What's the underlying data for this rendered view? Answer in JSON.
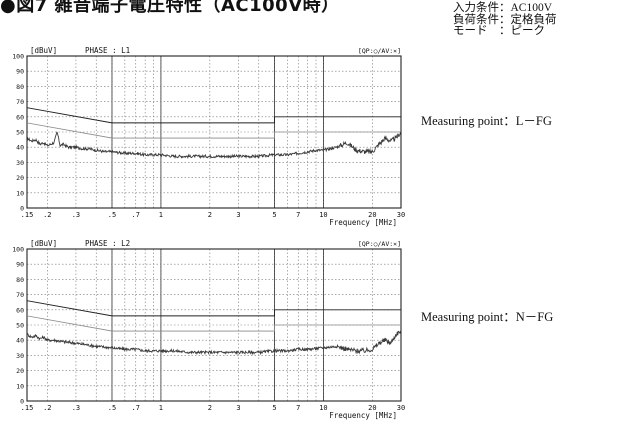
{
  "page": {
    "title": "●図7 雑音端子電圧特性（AC100V時）",
    "conditions": [
      {
        "text": "入力条件：AC100V"
      },
      {
        "text": "負荷条件：定格負荷"
      },
      {
        "text": "モード　：ピーク"
      }
    ]
  },
  "colors": {
    "axis": "#222222",
    "grid_major": "#333333",
    "grid_dotted": "#777777",
    "noise": "#3a3a3a",
    "limit_qp": "#222222",
    "limit_av": "#8a8a8a"
  },
  "chart_data": [
    {
      "type": "line",
      "id": "chart-1",
      "unit_label": "[dBuV]",
      "phase_label": "PHASE :  L1",
      "mode_label": "[QP:○/AV:×]",
      "measuring_point": "Measuring point：L－FG",
      "xlabel": "Frequency  [MHz]",
      "x_scale": "log",
      "xlim": [
        0.15,
        30
      ],
      "ylim": [
        0,
        100
      ],
      "x_ticks": [
        {
          "v": 0.15,
          "label": ".15"
        },
        {
          "v": 0.2,
          "label": ".2"
        },
        {
          "v": 0.3,
          "label": ".3"
        },
        {
          "v": 0.5,
          "label": ".5"
        },
        {
          "v": 0.7,
          "label": ".7"
        },
        {
          "v": 1,
          "label": "1"
        },
        {
          "v": 2,
          "label": "2"
        },
        {
          "v": 3,
          "label": "3"
        },
        {
          "v": 5,
          "label": "5"
        },
        {
          "v": 7,
          "label": "7"
        },
        {
          "v": 10,
          "label": "10"
        },
        {
          "v": 20,
          "label": "20"
        },
        {
          "v": 30,
          "label": "30"
        }
      ],
      "y_ticks": [
        {
          "v": 0,
          "label": "0"
        },
        {
          "v": 10,
          "label": "10"
        },
        {
          "v": 20,
          "label": "20"
        },
        {
          "v": 30,
          "label": "30"
        },
        {
          "v": 40,
          "label": "40"
        },
        {
          "v": 50,
          "label": "50"
        },
        {
          "v": 60,
          "label": "60"
        },
        {
          "v": 70,
          "label": "70"
        },
        {
          "v": 80,
          "label": "80"
        },
        {
          "v": 90,
          "label": "90"
        },
        {
          "v": 100,
          "label": "100"
        }
      ],
      "limit_qp": {
        "x": [
          0.15,
          0.5,
          0.5,
          5,
          5,
          30
        ],
        "y": [
          66,
          56,
          56,
          56,
          60,
          60
        ]
      },
      "limit_av": {
        "x": [
          0.15,
          0.5,
          0.5,
          5,
          5,
          30
        ],
        "y": [
          56,
          46,
          46,
          46,
          50,
          50
        ]
      },
      "noise": {
        "x": [
          0.15,
          0.16,
          0.17,
          0.18,
          0.19,
          0.2,
          0.21,
          0.22,
          0.23,
          0.24,
          0.25,
          0.27,
          0.3,
          0.33,
          0.36,
          0.4,
          0.45,
          0.5,
          0.6,
          0.7,
          0.8,
          0.9,
          1,
          1.2,
          1.5,
          2,
          2.5,
          3,
          4,
          5,
          6,
          7,
          8,
          9,
          10,
          12,
          14,
          16,
          18,
          20,
          22,
          24,
          26,
          28,
          30
        ],
        "y": [
          46,
          44,
          45,
          42,
          43,
          41,
          42,
          43,
          50,
          41,
          42,
          40,
          40,
          39,
          39,
          38,
          37,
          37,
          36,
          36,
          35,
          35,
          35,
          34,
          34,
          34,
          34,
          34,
          34,
          35,
          35,
          36,
          37,
          38,
          38,
          40,
          43,
          38,
          37,
          37,
          42,
          46,
          44,
          46,
          50
        ]
      }
    },
    {
      "type": "line",
      "id": "chart-2",
      "unit_label": "[dBuV]",
      "phase_label": "PHASE :  L2",
      "mode_label": "[QP:○/AV:×]",
      "measuring_point": "Measuring point：N－FG",
      "xlabel": "Frequency  [MHz]",
      "x_scale": "log",
      "xlim": [
        0.15,
        30
      ],
      "ylim": [
        0,
        100
      ],
      "x_ticks": [
        {
          "v": 0.15,
          "label": ".15"
        },
        {
          "v": 0.2,
          "label": ".2"
        },
        {
          "v": 0.3,
          "label": ".3"
        },
        {
          "v": 0.5,
          "label": ".5"
        },
        {
          "v": 0.7,
          "label": ".7"
        },
        {
          "v": 1,
          "label": "1"
        },
        {
          "v": 2,
          "label": "2"
        },
        {
          "v": 3,
          "label": "3"
        },
        {
          "v": 5,
          "label": "5"
        },
        {
          "v": 7,
          "label": "7"
        },
        {
          "v": 10,
          "label": "10"
        },
        {
          "v": 20,
          "label": "20"
        },
        {
          "v": 30,
          "label": "30"
        }
      ],
      "y_ticks": [
        {
          "v": 0,
          "label": "0"
        },
        {
          "v": 10,
          "label": "10"
        },
        {
          "v": 20,
          "label": "20"
        },
        {
          "v": 30,
          "label": "30"
        },
        {
          "v": 40,
          "label": "40"
        },
        {
          "v": 50,
          "label": "50"
        },
        {
          "v": 60,
          "label": "60"
        },
        {
          "v": 70,
          "label": "70"
        },
        {
          "v": 80,
          "label": "80"
        },
        {
          "v": 90,
          "label": "90"
        },
        {
          "v": 100,
          "label": "100"
        }
      ],
      "limit_qp": {
        "x": [
          0.15,
          0.5,
          0.5,
          5,
          5,
          30
        ],
        "y": [
          66,
          56,
          56,
          56,
          60,
          60
        ]
      },
      "limit_av": {
        "x": [
          0.15,
          0.5,
          0.5,
          5,
          5,
          30
        ],
        "y": [
          56,
          46,
          46,
          46,
          50,
          50
        ]
      },
      "noise": {
        "x": [
          0.15,
          0.16,
          0.17,
          0.18,
          0.19,
          0.2,
          0.22,
          0.25,
          0.3,
          0.35,
          0.4,
          0.5,
          0.6,
          0.7,
          0.8,
          1,
          1.2,
          1.5,
          2,
          2.5,
          3,
          4,
          5,
          6,
          7,
          8,
          10,
          12,
          14,
          16,
          18,
          20,
          22,
          24,
          26,
          28,
          30
        ],
        "y": [
          44,
          42,
          43,
          41,
          42,
          40,
          40,
          39,
          38,
          37,
          36,
          35,
          34,
          34,
          33,
          33,
          33,
          32,
          32,
          32,
          32,
          32,
          33,
          33,
          34,
          34,
          35,
          36,
          34,
          33,
          33,
          34,
          38,
          40,
          38,
          44,
          46
        ]
      }
    }
  ]
}
